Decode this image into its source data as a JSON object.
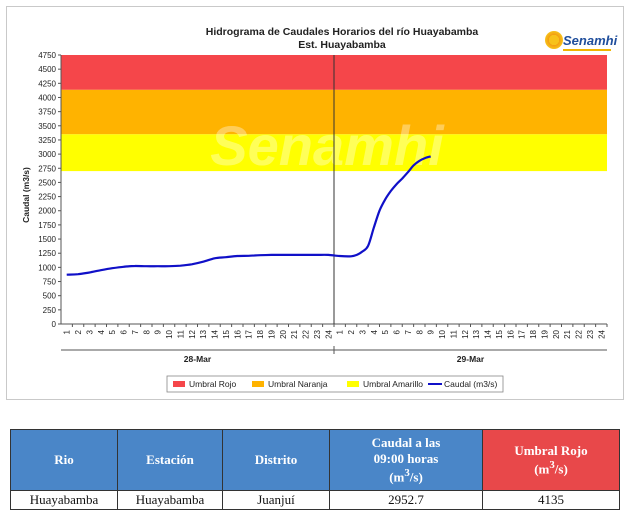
{
  "chart_data": {
    "type": "line",
    "title": "Hidrograma de Caudales Horarios del río Huayabamba",
    "subtitle": "Est. Huayabamba",
    "xlabel": "",
    "ylabel": "Caudal  (m3/s)",
    "ylim": [
      0,
      4750
    ],
    "yticks": [
      0,
      250,
      500,
      750,
      1000,
      1250,
      1500,
      1750,
      2000,
      2250,
      2500,
      2750,
      3000,
      3250,
      3500,
      3750,
      4000,
      4250,
      4500,
      4750
    ],
    "hour_ticks": [
      "1",
      "2",
      "3",
      "4",
      "5",
      "6",
      "7",
      "8",
      "9",
      "10",
      "11",
      "12",
      "13",
      "14",
      "15",
      "16",
      "17",
      "18",
      "19",
      "20",
      "21",
      "22",
      "23",
      "24"
    ],
    "days": [
      "28-Mar",
      "29-Mar"
    ],
    "grid": false,
    "legend_position": "bottom",
    "thresholds": [
      {
        "name": "Umbral Rojo",
        "from": 4135,
        "to": 4750,
        "color": "#f5464a"
      },
      {
        "name": "Umbral Naranja",
        "from": 3350,
        "to": 4135,
        "color": "#ffb300"
      },
      {
        "name": "Umbral Amarillo",
        "from": 2700,
        "to": 3350,
        "color": "#ffff00"
      }
    ],
    "series": [
      {
        "name": "Caudal (m3/s)",
        "color": "#1010c8",
        "x": [
          1,
          2,
          3,
          4,
          5,
          6,
          7,
          8,
          9,
          10,
          11,
          12,
          13,
          14,
          15,
          16,
          17,
          18,
          19,
          20,
          21,
          22,
          23,
          24,
          25,
          26,
          26.5,
          27,
          27.5,
          28,
          28.5,
          29,
          29.5,
          30,
          30.5,
          31,
          31.5,
          32,
          32.5,
          33
        ],
        "y": [
          870,
          880,
          910,
          950,
          985,
          1010,
          1025,
          1020,
          1020,
          1020,
          1030,
          1055,
          1100,
          1160,
          1180,
          1200,
          1205,
          1215,
          1220,
          1220,
          1220,
          1220,
          1220,
          1220,
          1200,
          1195,
          1220,
          1280,
          1380,
          1700,
          2000,
          2200,
          2350,
          2470,
          2570,
          2680,
          2800,
          2880,
          2930,
          2960
        ]
      }
    ],
    "legend": [
      "Umbral Rojo",
      "Umbral Naranja",
      "Umbral Amarillo",
      "Caudal (m3/s)"
    ],
    "watermark": "Senamhi"
  },
  "logo": {
    "text": "Senamhi"
  },
  "table": {
    "headers": {
      "rio": "Rio",
      "estacion": "Estación",
      "distrito": "Distrito",
      "caudal_a": "Caudal a las",
      "caudal_b": "09:00 horas",
      "caudal_unit": "m",
      "caudal_sup": "3",
      "caudal_unit2": "/s",
      "umbral_a": "Umbral Rojo",
      "umbral_unit": "m",
      "umbral_sup": "3",
      "umbral_unit2": "/s"
    },
    "row": {
      "rio": "Huayabamba",
      "estacion": "Huayabamba",
      "distrito": "Juanjuí",
      "caudal": "2952.7",
      "umbral": "4135"
    }
  }
}
